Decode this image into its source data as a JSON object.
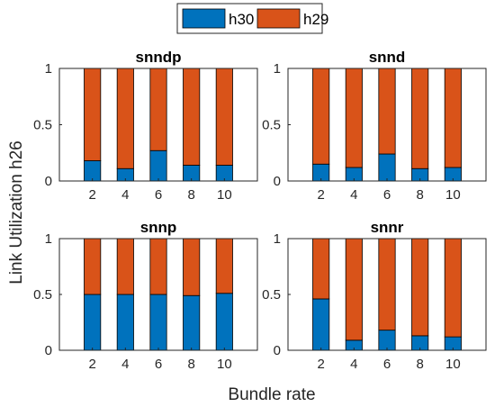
{
  "colors": {
    "h30": "#0072BD",
    "h29": "#D95319"
  },
  "figure": {
    "ylabel": "Link Utilization h26",
    "xlabel": "Bundle rate"
  },
  "legend": {
    "placement": "top-center",
    "items": [
      "h30",
      "h29"
    ]
  },
  "chart_data": [
    {
      "type": "bar",
      "stacked": true,
      "title": "snndp",
      "categories": [
        "2",
        "4",
        "6",
        "8",
        "10"
      ],
      "series": [
        {
          "name": "h30",
          "values": [
            0.18,
            0.11,
            0.27,
            0.14,
            0.14
          ]
        },
        {
          "name": "h29",
          "values": [
            0.82,
            0.89,
            0.73,
            0.86,
            0.86
          ]
        }
      ],
      "ylim": [
        0,
        1
      ],
      "yticks": [
        "0",
        "0.5",
        "1"
      ]
    },
    {
      "type": "bar",
      "stacked": true,
      "title": "snnd",
      "categories": [
        "2",
        "4",
        "6",
        "8",
        "10"
      ],
      "series": [
        {
          "name": "h30",
          "values": [
            0.15,
            0.12,
            0.24,
            0.11,
            0.12
          ]
        },
        {
          "name": "h29",
          "values": [
            0.85,
            0.88,
            0.76,
            0.89,
            0.88
          ]
        }
      ],
      "ylim": [
        0,
        1
      ],
      "yticks": [
        "0",
        "0.5",
        "1"
      ]
    },
    {
      "type": "bar",
      "stacked": true,
      "title": "snnp",
      "categories": [
        "2",
        "4",
        "6",
        "8",
        "10"
      ],
      "series": [
        {
          "name": "h30",
          "values": [
            0.5,
            0.5,
            0.5,
            0.49,
            0.51
          ]
        },
        {
          "name": "h29",
          "values": [
            0.5,
            0.5,
            0.5,
            0.51,
            0.49
          ]
        }
      ],
      "ylim": [
        0,
        1
      ],
      "yticks": [
        "0",
        "0.5",
        "1"
      ]
    },
    {
      "type": "bar",
      "stacked": true,
      "title": "snnr",
      "categories": [
        "2",
        "4",
        "6",
        "8",
        "10"
      ],
      "series": [
        {
          "name": "h30",
          "values": [
            0.46,
            0.09,
            0.18,
            0.13,
            0.12
          ]
        },
        {
          "name": "h29",
          "values": [
            0.54,
            0.91,
            0.82,
            0.87,
            0.88
          ]
        }
      ],
      "ylim": [
        0,
        1
      ],
      "yticks": [
        "0",
        "0.5",
        "1"
      ]
    }
  ]
}
